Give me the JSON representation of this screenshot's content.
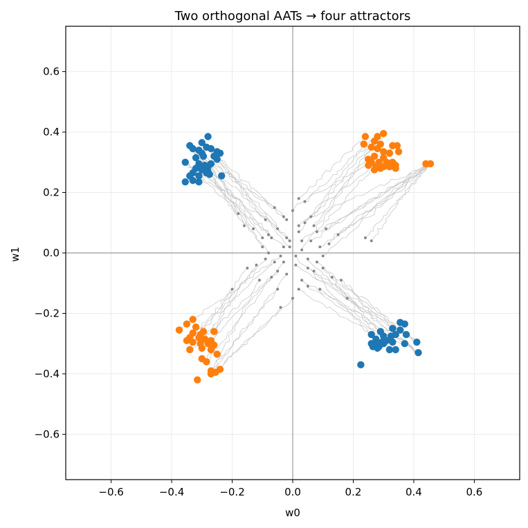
{
  "chart_data": {
    "type": "scatter",
    "title": "Two orthogonal AATs → four attractors",
    "xlabel": "w0",
    "ylabel": "w1",
    "xlim": [
      -0.75,
      0.75
    ],
    "ylim": [
      -0.75,
      0.75
    ],
    "xticks": [
      -0.6,
      -0.4,
      -0.2,
      0.0,
      0.2,
      0.4,
      0.6
    ],
    "yticks": [
      -0.6,
      -0.4,
      -0.2,
      0.0,
      0.2,
      0.4,
      0.6
    ],
    "xtick_labels": [
      "−0.6",
      "−0.4",
      "−0.2",
      "0.0",
      "0.2",
      "0.4",
      "0.6"
    ],
    "ytick_labels": [
      "−0.6",
      "−0.4",
      "−0.2",
      "0.0",
      "0.2",
      "0.4",
      "0.6"
    ],
    "grid": true,
    "reference_lines": {
      "x": 0,
      "y": 0,
      "color": "#999999"
    },
    "colors": {
      "attractor_blue": "#1f77b4",
      "attractor_orange": "#ff7f0e",
      "start_points": "#888888",
      "trajectories": "#c8c8c8",
      "grid": "#ebebeb"
    },
    "series": [
      {
        "color": "#1f77b4",
        "marker": "large-dot",
        "points": [
          [
            -0.28,
            0.385
          ],
          [
            -0.34,
            0.355
          ],
          [
            -0.3,
            0.365
          ],
          [
            -0.33,
            0.345
          ],
          [
            -0.31,
            0.34
          ],
          [
            -0.285,
            0.35
          ],
          [
            -0.27,
            0.345
          ],
          [
            -0.25,
            0.335
          ],
          [
            -0.24,
            0.33
          ],
          [
            -0.3,
            0.33
          ],
          [
            -0.32,
            0.315
          ],
          [
            -0.295,
            0.32
          ],
          [
            -0.26,
            0.32
          ],
          [
            -0.25,
            0.31
          ],
          [
            -0.31,
            0.295
          ],
          [
            -0.29,
            0.29
          ],
          [
            -0.27,
            0.295
          ],
          [
            -0.28,
            0.285
          ],
          [
            -0.3,
            0.275
          ],
          [
            -0.28,
            0.27
          ],
          [
            -0.355,
            0.3
          ],
          [
            -0.32,
            0.28
          ],
          [
            -0.33,
            0.265
          ],
          [
            -0.34,
            0.255
          ],
          [
            -0.31,
            0.255
          ],
          [
            -0.285,
            0.265
          ],
          [
            -0.275,
            0.26
          ],
          [
            -0.235,
            0.255
          ],
          [
            -0.33,
            0.24
          ],
          [
            -0.31,
            0.235
          ],
          [
            -0.355,
            0.235
          ],
          [
            0.26,
            -0.27
          ],
          [
            0.275,
            -0.285
          ],
          [
            0.29,
            -0.26
          ],
          [
            0.3,
            -0.275
          ],
          [
            0.28,
            -0.295
          ],
          [
            0.26,
            -0.3
          ],
          [
            0.265,
            -0.31
          ],
          [
            0.285,
            -0.31
          ],
          [
            0.3,
            -0.3
          ],
          [
            0.31,
            -0.29
          ],
          [
            0.33,
            -0.25
          ],
          [
            0.325,
            -0.275
          ],
          [
            0.34,
            -0.27
          ],
          [
            0.355,
            -0.255
          ],
          [
            0.355,
            -0.23
          ],
          [
            0.37,
            -0.235
          ],
          [
            0.375,
            -0.27
          ],
          [
            0.33,
            -0.295
          ],
          [
            0.34,
            -0.32
          ],
          [
            0.32,
            -0.32
          ],
          [
            0.37,
            -0.3
          ],
          [
            0.41,
            -0.295
          ],
          [
            0.415,
            -0.33
          ],
          [
            0.28,
            -0.315
          ],
          [
            0.3,
            -0.29
          ],
          [
            0.225,
            -0.37
          ]
        ]
      },
      {
        "color": "#ff7f0e",
        "marker": "large-dot",
        "points": [
          [
            0.24,
            0.385
          ],
          [
            0.28,
            0.385
          ],
          [
            0.3,
            0.395
          ],
          [
            0.27,
            0.37
          ],
          [
            0.29,
            0.36
          ],
          [
            0.235,
            0.36
          ],
          [
            0.26,
            0.35
          ],
          [
            0.28,
            0.345
          ],
          [
            0.3,
            0.335
          ],
          [
            0.33,
            0.355
          ],
          [
            0.345,
            0.355
          ],
          [
            0.35,
            0.335
          ],
          [
            0.32,
            0.33
          ],
          [
            0.3,
            0.315
          ],
          [
            0.27,
            0.32
          ],
          [
            0.25,
            0.31
          ],
          [
            0.26,
            0.3
          ],
          [
            0.285,
            0.3
          ],
          [
            0.31,
            0.3
          ],
          [
            0.33,
            0.3
          ],
          [
            0.25,
            0.29
          ],
          [
            0.275,
            0.285
          ],
          [
            0.3,
            0.285
          ],
          [
            0.32,
            0.285
          ],
          [
            0.34,
            0.29
          ],
          [
            0.29,
            0.28
          ],
          [
            0.27,
            0.275
          ],
          [
            0.34,
            0.28
          ],
          [
            0.44,
            0.295
          ],
          [
            0.455,
            0.295
          ],
          [
            -0.33,
            -0.22
          ],
          [
            -0.35,
            -0.235
          ],
          [
            -0.375,
            -0.255
          ],
          [
            -0.32,
            -0.245
          ],
          [
            -0.295,
            -0.26
          ],
          [
            -0.33,
            -0.265
          ],
          [
            -0.305,
            -0.27
          ],
          [
            -0.34,
            -0.28
          ],
          [
            -0.31,
            -0.28
          ],
          [
            -0.35,
            -0.29
          ],
          [
            -0.29,
            -0.285
          ],
          [
            -0.27,
            -0.29
          ],
          [
            -0.33,
            -0.295
          ],
          [
            -0.305,
            -0.3
          ],
          [
            -0.28,
            -0.3
          ],
          [
            -0.26,
            -0.305
          ],
          [
            -0.34,
            -0.32
          ],
          [
            -0.3,
            -0.315
          ],
          [
            -0.27,
            -0.32
          ],
          [
            -0.25,
            -0.335
          ],
          [
            -0.3,
            -0.35
          ],
          [
            -0.285,
            -0.36
          ],
          [
            -0.27,
            -0.39
          ],
          [
            -0.255,
            -0.395
          ],
          [
            -0.24,
            -0.385
          ],
          [
            -0.315,
            -0.42
          ],
          [
            -0.27,
            -0.4
          ],
          [
            -0.26,
            -0.26
          ]
        ]
      },
      {
        "color": "#888888",
        "marker": "small-dot",
        "points": [
          [
            -0.03,
            0.12
          ],
          [
            0.04,
            0.1
          ],
          [
            -0.05,
            0.08
          ],
          [
            0.02,
            0.07
          ],
          [
            -0.02,
            0.05
          ],
          [
            0.06,
            0.04
          ],
          [
            -0.08,
            0.06
          ],
          [
            0.08,
            0.07
          ],
          [
            -0.01,
            0.02
          ],
          [
            0.03,
            0.01
          ],
          [
            -0.04,
            -0.01
          ],
          [
            0.05,
            -0.02
          ],
          [
            -0.06,
            -0.03
          ],
          [
            0.01,
            -0.04
          ],
          [
            -0.02,
            -0.07
          ],
          [
            0.07,
            -0.06
          ],
          [
            -0.07,
            -0.08
          ],
          [
            0.03,
            -0.09
          ],
          [
            -0.05,
            -0.12
          ],
          [
            0.05,
            -0.11
          ],
          [
            -0.1,
            0.02
          ],
          [
            0.1,
            -0.01
          ],
          [
            -0.12,
            -0.04
          ],
          [
            0.12,
            0.03
          ],
          [
            0.0,
            0.14
          ],
          [
            0.0,
            -0.15
          ],
          [
            -0.09,
            0.11
          ],
          [
            0.09,
            -0.12
          ],
          [
            0.04,
            0.17
          ],
          [
            -0.04,
            -0.18
          ],
          [
            0.02,
            0.09
          ],
          [
            -0.03,
            -0.03
          ],
          [
            0.06,
            0.12
          ],
          [
            -0.06,
            0.15
          ],
          [
            0.08,
            -0.03
          ],
          [
            -0.08,
            0.0
          ],
          [
            0.01,
            -0.01
          ],
          [
            -0.01,
            0.04
          ],
          [
            0.11,
            0.08
          ],
          [
            -0.11,
            -0.09
          ],
          [
            0.13,
            -0.08
          ],
          [
            -0.13,
            0.08
          ],
          [
            0.02,
            -0.12
          ],
          [
            -0.02,
            0.11
          ],
          [
            0.09,
            0.02
          ],
          [
            -0.09,
            -0.02
          ],
          [
            0.15,
            0.06
          ],
          [
            -0.15,
            -0.05
          ],
          [
            0.16,
            -0.09
          ],
          [
            -0.16,
            0.09
          ],
          [
            0.03,
            0.04
          ],
          [
            -0.03,
            0.02
          ],
          [
            0.05,
            -0.05
          ],
          [
            -0.05,
            -0.06
          ],
          [
            0.07,
            0.09
          ],
          [
            -0.07,
            0.05
          ],
          [
            0.1,
            -0.05
          ],
          [
            -0.1,
            0.05
          ],
          [
            0.02,
            0.18
          ],
          [
            0.24,
            0.05
          ],
          [
            0.26,
            0.04
          ],
          [
            -0.2,
            -0.12
          ],
          [
            0.18,
            -0.15
          ],
          [
            -0.18,
            0.13
          ]
        ]
      }
    ]
  }
}
